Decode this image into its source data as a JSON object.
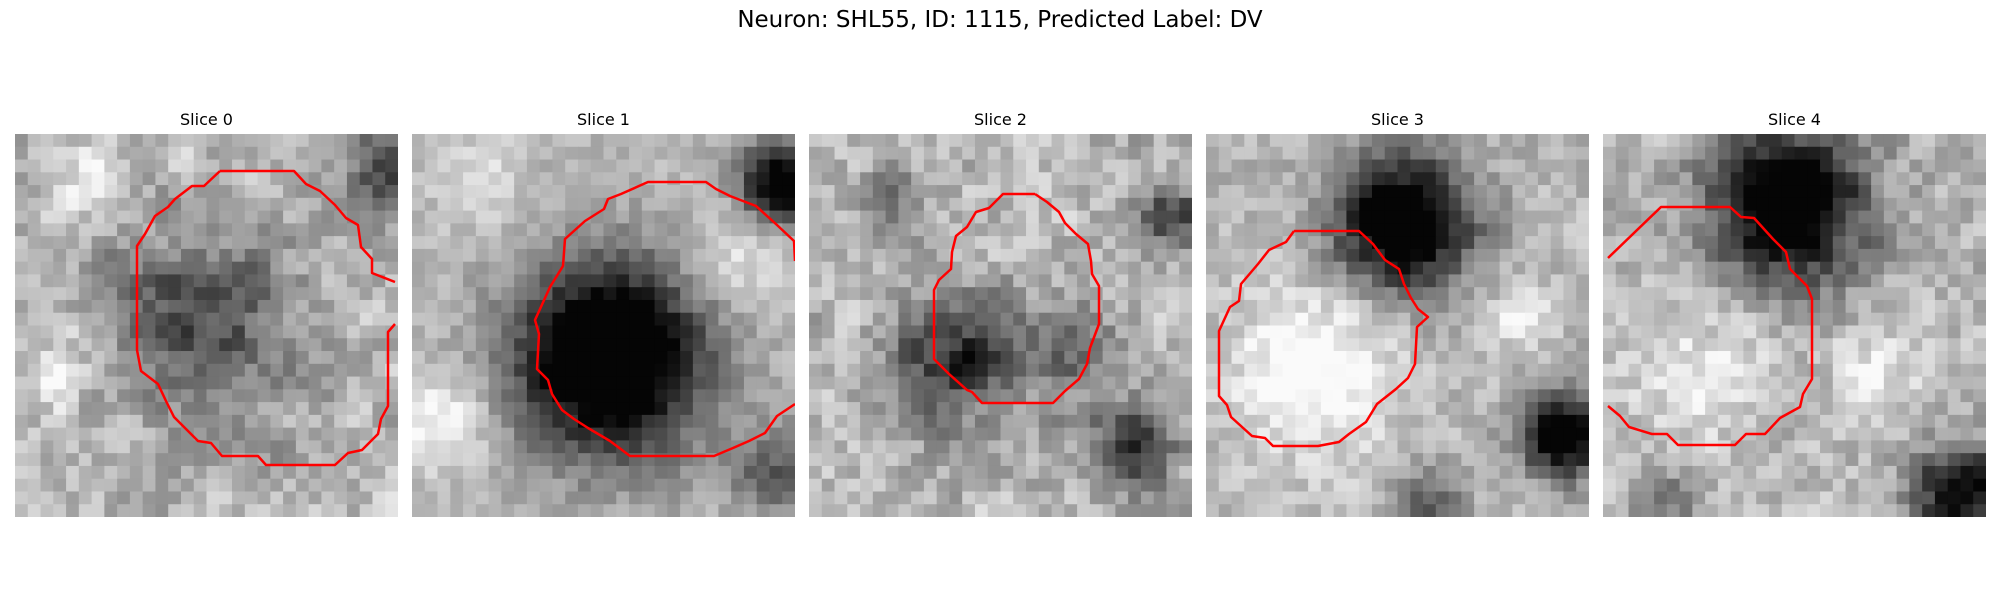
{
  "figure": {
    "title": "Neuron: SHL55, ID: 1115, Predicted Label: DV",
    "colors": {
      "contour": "#ff0000",
      "background": "#ffffff"
    },
    "colormap": "gray",
    "panels": [
      {
        "title": "Slice 0"
      },
      {
        "title": "Slice 1"
      },
      {
        "title": "Slice 2"
      },
      {
        "title": "Slice 3"
      },
      {
        "title": "Slice 4"
      }
    ]
  }
}
